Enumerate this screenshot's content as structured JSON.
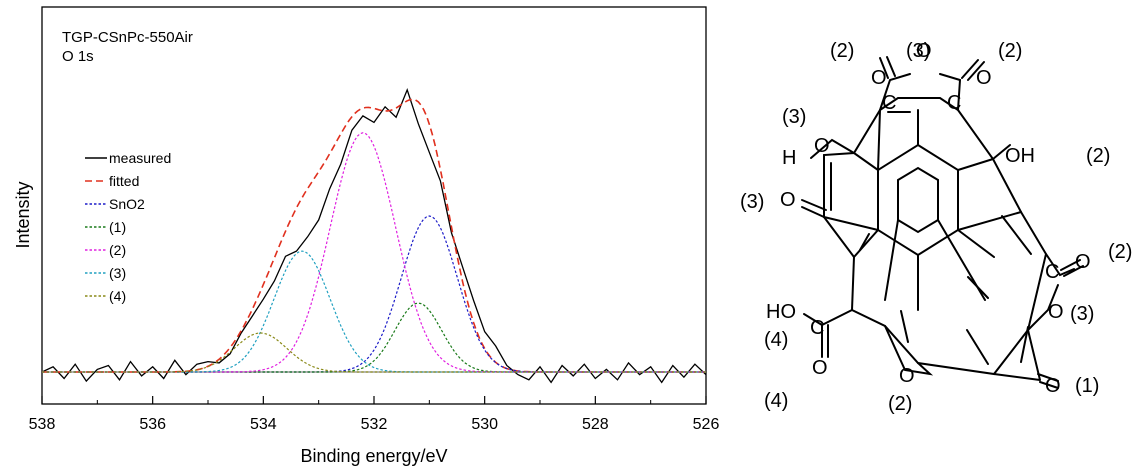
{
  "chart_data": {
    "type": "line",
    "annotation": [
      "TGP-CSnPc-550Air",
      "O 1s"
    ],
    "xlabel": "Binding energy/eV",
    "ylabel": "Intensity",
    "xlim": [
      538,
      526
    ],
    "x_direction": "reversed",
    "x_ticks": [
      "538",
      "536",
      "534",
      "532",
      "530",
      "528",
      "526"
    ],
    "y_ticks": "none",
    "grid": false,
    "legend_position": "left",
    "baseline": 0,
    "series": [
      {
        "name": "measured",
        "style": "solid",
        "color": "#000000",
        "kind": "measured",
        "x": [
          538.0,
          537.8,
          537.6,
          537.4,
          537.2,
          537.0,
          536.8,
          536.6,
          536.4,
          536.2,
          536.0,
          535.8,
          535.6,
          535.4,
          535.2,
          535.0,
          534.8,
          534.6,
          534.4,
          534.2,
          534.0,
          533.8,
          533.6,
          533.4,
          533.2,
          533.0,
          532.8,
          532.6,
          532.4,
          532.2,
          532.0,
          531.8,
          531.6,
          531.4,
          531.2,
          531.0,
          530.8,
          530.6,
          530.4,
          530.2,
          530.0,
          529.8,
          529.6,
          529.4,
          529.2,
          529.0,
          528.8,
          528.6,
          528.4,
          528.2,
          528.0,
          527.8,
          527.6,
          527.4,
          527.2,
          527.0,
          526.8,
          526.6,
          526.4,
          526.2,
          526.0
        ],
        "y": [
          0.0,
          0.04,
          -0.05,
          0.06,
          -0.07,
          0.02,
          0.05,
          -0.06,
          0.08,
          -0.03,
          0.04,
          -0.05,
          0.09,
          -0.02,
          0.06,
          0.08,
          0.07,
          0.14,
          0.3,
          0.43,
          0.56,
          0.7,
          0.89,
          0.93,
          1.04,
          1.17,
          1.41,
          1.6,
          1.86,
          1.97,
          1.92,
          2.04,
          1.96,
          2.17,
          1.91,
          1.69,
          1.47,
          1.07,
          0.81,
          0.55,
          0.31,
          0.2,
          0.05,
          -0.02,
          -0.06,
          0.04,
          -0.08,
          0.05,
          -0.03,
          0.06,
          -0.05,
          0.02,
          -0.06,
          0.07,
          -0.02,
          0.04,
          -0.08,
          0.05,
          -0.04,
          0.06,
          -0.02
        ]
      },
      {
        "name": "fitted",
        "style": "dashed",
        "color": "#e0301e",
        "kind": "fit",
        "components": [
          {
            "center": 534.05,
            "height": 0.3,
            "fwhm": 1.12
          },
          {
            "center": 533.3,
            "height": 0.93,
            "fwhm": 1.19
          },
          {
            "center": 532.2,
            "height": 1.84,
            "fwhm": 1.39
          },
          {
            "center": 531.2,
            "height": 0.53,
            "fwhm": 0.99
          },
          {
            "center": 531.0,
            "height": 1.2,
            "fwhm": 1.19
          }
        ]
      },
      {
        "name": "SnO2",
        "style": "dotted",
        "color": "#1c1cc8",
        "kind": "gaussian",
        "center": 531.0,
        "height": 1.2,
        "fwhm": 1.19
      },
      {
        "name": "(1)",
        "style": "dotted",
        "color": "#1a7a1a",
        "kind": "gaussian",
        "center": 531.2,
        "height": 0.53,
        "fwhm": 0.99
      },
      {
        "name": "(2)",
        "style": "dotted",
        "color": "#e020e0",
        "kind": "gaussian",
        "center": 532.2,
        "height": 1.84,
        "fwhm": 1.39
      },
      {
        "name": "(3)",
        "style": "dotted",
        "color": "#20a0c0",
        "kind": "gaussian",
        "center": 533.3,
        "height": 0.93,
        "fwhm": 1.19
      },
      {
        "name": "(4)",
        "style": "dotted",
        "color": "#8a8a18",
        "kind": "gaussian",
        "center": 534.05,
        "height": 0.3,
        "fwhm": 1.12
      }
    ]
  },
  "molecule": {
    "atom_symbols": {
      "o1": "O",
      "o2": "O",
      "o3": "O",
      "oh_top": "O",
      "oh_right": "OH",
      "h_left": "H",
      "o_left": "O",
      "o_right1": "O",
      "o_right2": "O",
      "ho_label": "HO",
      "o_bot": "O",
      "o_furan": "O",
      "o_ketone": "O",
      "c_top1": "C",
      "c_top2": "C",
      "c_right": "C",
      "c_left": "C"
    },
    "site_labels": {
      "top_left": "(2)",
      "top_mid": "(3)",
      "top_right": "(2)",
      "oh_left": "(3)",
      "oh_right": "(2)",
      "ketone_left": "(3)",
      "carbonyl_right": "(2)",
      "ring_o_right": "(3)",
      "cooh_oh": "(4)",
      "cooh_o": "(4)",
      "furan": "(2)",
      "ketone_bottom": "(1)"
    }
  }
}
